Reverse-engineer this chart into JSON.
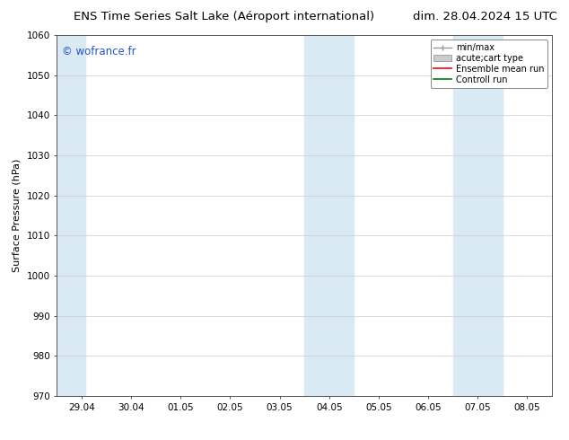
{
  "title_left": "ENS Time Series Salt Lake (Aéroport international)",
  "title_right": "dim. 28.04.2024 15 UTC",
  "ylabel": "Surface Pressure (hPa)",
  "ylim": [
    970,
    1060
  ],
  "yticks": [
    970,
    980,
    990,
    1000,
    1010,
    1020,
    1030,
    1040,
    1050,
    1060
  ],
  "xtick_labels": [
    "29.04",
    "30.04",
    "01.05",
    "02.05",
    "03.05",
    "04.05",
    "05.05",
    "06.05",
    "07.05",
    "08.05"
  ],
  "xtick_positions": [
    0,
    1,
    2,
    3,
    4,
    5,
    6,
    7,
    8,
    9
  ],
  "shaded_bands": [
    {
      "xstart": -0.5,
      "xend": 0.08,
      "color": "#daeaf5"
    },
    {
      "xstart": 4.5,
      "xend": 5.5,
      "color": "#daeaf5"
    },
    {
      "xstart": 7.5,
      "xend": 8.5,
      "color": "#daeaf5"
    }
  ],
  "watermark_text": "© wofrance.fr",
  "watermark_color": "#2255cc",
  "bg_color": "#ffffff",
  "grid_color": "#cccccc",
  "title_fontsize": 9.5,
  "axis_label_fontsize": 8,
  "tick_fontsize": 7.5,
  "legend_fontsize": 7
}
